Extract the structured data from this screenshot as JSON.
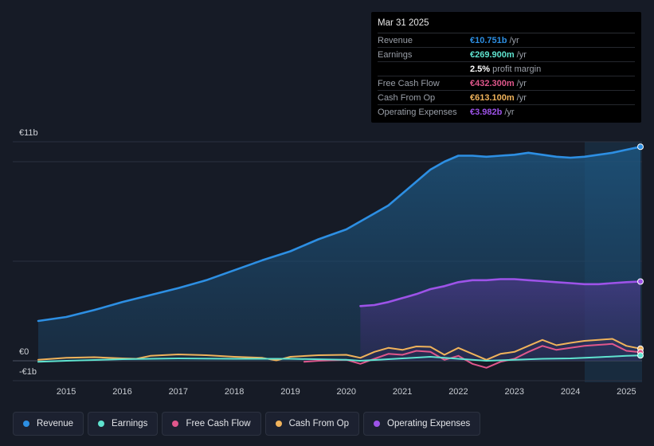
{
  "tooltip": {
    "date": "Mar 31 2025",
    "rows": [
      {
        "label": "Revenue",
        "value": "€10.751b",
        "unit": "/yr",
        "color": "#2d8fe3"
      },
      {
        "label": "Earnings",
        "value": "€269.900m",
        "unit": "/yr",
        "color": "#5fe3cf"
      },
      {
        "label": "",
        "value": "2.5%",
        "unit": "profit margin",
        "color": "#ffffff"
      },
      {
        "label": "Free Cash Flow",
        "value": "€432.300m",
        "unit": "/yr",
        "color": "#e0578c"
      },
      {
        "label": "Cash From Op",
        "value": "€613.100m",
        "unit": "/yr",
        "color": "#f0b35b"
      },
      {
        "label": "Operating Expenses",
        "value": "€3.982b",
        "unit": "/yr",
        "color": "#9d53e8"
      }
    ]
  },
  "legend": [
    {
      "label": "Revenue",
      "color": "#2d8fe3"
    },
    {
      "label": "Earnings",
      "color": "#5fe3cf"
    },
    {
      "label": "Free Cash Flow",
      "color": "#e0578c"
    },
    {
      "label": "Cash From Op",
      "color": "#f0b35b"
    },
    {
      "label": "Operating Expenses",
      "color": "#9d53e8"
    }
  ],
  "chart_data": {
    "type": "line",
    "title": "",
    "currency": "€",
    "ylabels": {
      "top": "€11b",
      "zero": "€0",
      "neg": "-€1b"
    },
    "ylim": [
      -1,
      11
    ],
    "xlim": [
      2014.5,
      2025.25
    ],
    "xticks": [
      "2015",
      "2016",
      "2017",
      "2018",
      "2019",
      "2020",
      "2021",
      "2022",
      "2023",
      "2024",
      "2025"
    ],
    "series": [
      {
        "name": "Revenue",
        "color": "#2d8fe3",
        "fill": true,
        "points": [
          [
            2014.5,
            2.0
          ],
          [
            2015.0,
            2.2
          ],
          [
            2015.5,
            2.55
          ],
          [
            2016.0,
            2.95
          ],
          [
            2016.5,
            3.3
          ],
          [
            2017.0,
            3.65
          ],
          [
            2017.5,
            4.05
          ],
          [
            2018.0,
            4.55
          ],
          [
            2018.5,
            5.05
          ],
          [
            2019.0,
            5.5
          ],
          [
            2019.5,
            6.1
          ],
          [
            2020.0,
            6.6
          ],
          [
            2020.25,
            7.0
          ],
          [
            2020.5,
            7.4
          ],
          [
            2020.75,
            7.8
          ],
          [
            2021.0,
            8.4
          ],
          [
            2021.25,
            9.0
          ],
          [
            2021.5,
            9.6
          ],
          [
            2021.75,
            10.0
          ],
          [
            2022.0,
            10.3
          ],
          [
            2022.25,
            10.3
          ],
          [
            2022.5,
            10.25
          ],
          [
            2022.75,
            10.3
          ],
          [
            2023.0,
            10.35
          ],
          [
            2023.25,
            10.45
          ],
          [
            2023.5,
            10.35
          ],
          [
            2023.75,
            10.25
          ],
          [
            2024.0,
            10.2
          ],
          [
            2024.25,
            10.25
          ],
          [
            2024.5,
            10.35
          ],
          [
            2024.75,
            10.45
          ],
          [
            2025.0,
            10.6
          ],
          [
            2025.25,
            10.75
          ]
        ]
      },
      {
        "name": "Operating Expenses",
        "color": "#9d53e8",
        "fill": true,
        "points": [
          [
            2020.25,
            2.75
          ],
          [
            2020.5,
            2.8
          ],
          [
            2020.75,
            2.95
          ],
          [
            2021.0,
            3.15
          ],
          [
            2021.25,
            3.35
          ],
          [
            2021.5,
            3.6
          ],
          [
            2021.75,
            3.75
          ],
          [
            2022.0,
            3.95
          ],
          [
            2022.25,
            4.05
          ],
          [
            2022.5,
            4.05
          ],
          [
            2022.75,
            4.1
          ],
          [
            2023.0,
            4.1
          ],
          [
            2023.25,
            4.05
          ],
          [
            2023.5,
            4.0
          ],
          [
            2023.75,
            3.95
          ],
          [
            2024.0,
            3.9
          ],
          [
            2024.25,
            3.85
          ],
          [
            2024.5,
            3.85
          ],
          [
            2024.75,
            3.9
          ],
          [
            2025.0,
            3.95
          ],
          [
            2025.25,
            3.98
          ]
        ]
      },
      {
        "name": "Cash From Op",
        "color": "#f0b35b",
        "fill": false,
        "points": [
          [
            2014.5,
            0.05
          ],
          [
            2015.0,
            0.15
          ],
          [
            2015.5,
            0.18
          ],
          [
            2016.0,
            0.12
          ],
          [
            2016.25,
            0.1
          ],
          [
            2016.5,
            0.25
          ],
          [
            2017.0,
            0.32
          ],
          [
            2017.5,
            0.28
          ],
          [
            2018.0,
            0.2
          ],
          [
            2018.5,
            0.15
          ],
          [
            2018.75,
            0.02
          ],
          [
            2019.0,
            0.2
          ],
          [
            2019.5,
            0.28
          ],
          [
            2020.0,
            0.3
          ],
          [
            2020.25,
            0.15
          ],
          [
            2020.5,
            0.45
          ],
          [
            2020.75,
            0.65
          ],
          [
            2021.0,
            0.55
          ],
          [
            2021.25,
            0.72
          ],
          [
            2021.5,
            0.7
          ],
          [
            2021.75,
            0.3
          ],
          [
            2022.0,
            0.65
          ],
          [
            2022.25,
            0.35
          ],
          [
            2022.5,
            0.05
          ],
          [
            2022.75,
            0.35
          ],
          [
            2023.0,
            0.45
          ],
          [
            2023.25,
            0.75
          ],
          [
            2023.5,
            1.05
          ],
          [
            2023.75,
            0.78
          ],
          [
            2024.0,
            0.9
          ],
          [
            2024.25,
            1.0
          ],
          [
            2024.5,
            1.05
          ],
          [
            2024.75,
            1.1
          ],
          [
            2025.0,
            0.75
          ],
          [
            2025.25,
            0.61
          ]
        ]
      },
      {
        "name": "Free Cash Flow",
        "color": "#e0578c",
        "fill": false,
        "points": [
          [
            2019.25,
            -0.05
          ],
          [
            2019.5,
            0.0
          ],
          [
            2020.0,
            0.05
          ],
          [
            2020.25,
            -0.15
          ],
          [
            2020.5,
            0.1
          ],
          [
            2020.75,
            0.35
          ],
          [
            2021.0,
            0.3
          ],
          [
            2021.25,
            0.5
          ],
          [
            2021.5,
            0.45
          ],
          [
            2021.75,
            0.05
          ],
          [
            2022.0,
            0.25
          ],
          [
            2022.25,
            -0.15
          ],
          [
            2022.5,
            -0.35
          ],
          [
            2022.75,
            -0.05
          ],
          [
            2023.0,
            0.1
          ],
          [
            2023.25,
            0.45
          ],
          [
            2023.5,
            0.75
          ],
          [
            2023.75,
            0.55
          ],
          [
            2024.0,
            0.65
          ],
          [
            2024.25,
            0.75
          ],
          [
            2024.5,
            0.8
          ],
          [
            2024.75,
            0.85
          ],
          [
            2025.0,
            0.5
          ],
          [
            2025.25,
            0.43
          ]
        ]
      },
      {
        "name": "Earnings",
        "color": "#5fe3cf",
        "fill": false,
        "points": [
          [
            2014.5,
            -0.05
          ],
          [
            2015.0,
            0.0
          ],
          [
            2016.0,
            0.08
          ],
          [
            2017.0,
            0.12
          ],
          [
            2018.0,
            0.1
          ],
          [
            2019.0,
            0.1
          ],
          [
            2020.0,
            0.05
          ],
          [
            2020.25,
            0.0
          ],
          [
            2021.0,
            0.12
          ],
          [
            2021.5,
            0.2
          ],
          [
            2022.0,
            0.1
          ],
          [
            2022.5,
            0.0
          ],
          [
            2023.0,
            0.05
          ],
          [
            2023.5,
            0.1
          ],
          [
            2024.0,
            0.12
          ],
          [
            2024.5,
            0.18
          ],
          [
            2025.0,
            0.25
          ],
          [
            2025.25,
            0.27
          ]
        ]
      }
    ]
  }
}
